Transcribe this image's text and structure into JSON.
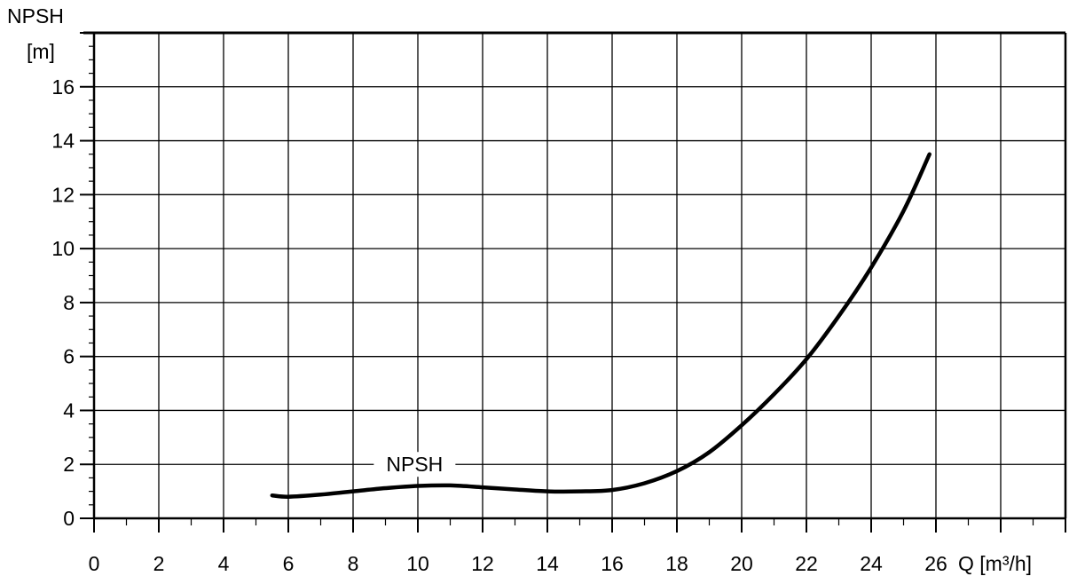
{
  "chart_data": {
    "type": "line",
    "title": "",
    "ylabel_line1": "NPSH",
    "ylabel_line2": "[m]",
    "xlabel": "Q [m³/h]",
    "xlim": [
      0,
      30
    ],
    "ylim": [
      0,
      18
    ],
    "xticks": [
      "0",
      "2",
      "4",
      "6",
      "8",
      "10",
      "12",
      "14",
      "16",
      "18",
      "20",
      "22",
      "24",
      "26"
    ],
    "yticks": [
      "0",
      "2",
      "4",
      "6",
      "8",
      "10",
      "12",
      "14",
      "16"
    ],
    "grid": true,
    "colors": {
      "line": "#000000",
      "grid": "#000000",
      "background": "#ffffff"
    },
    "series": [
      {
        "name": "NPSH",
        "x": [
          5.5,
          6,
          7,
          8,
          9,
          10,
          11,
          12,
          13,
          14,
          15,
          16,
          17,
          18,
          19,
          20,
          21,
          22,
          23,
          24,
          25,
          25.8
        ],
        "y": [
          0.85,
          0.8,
          0.88,
          1.0,
          1.12,
          1.2,
          1.22,
          1.15,
          1.07,
          1.0,
          1.0,
          1.05,
          1.3,
          1.75,
          2.45,
          3.45,
          4.6,
          5.9,
          7.5,
          9.3,
          11.4,
          13.5
        ]
      }
    ]
  }
}
